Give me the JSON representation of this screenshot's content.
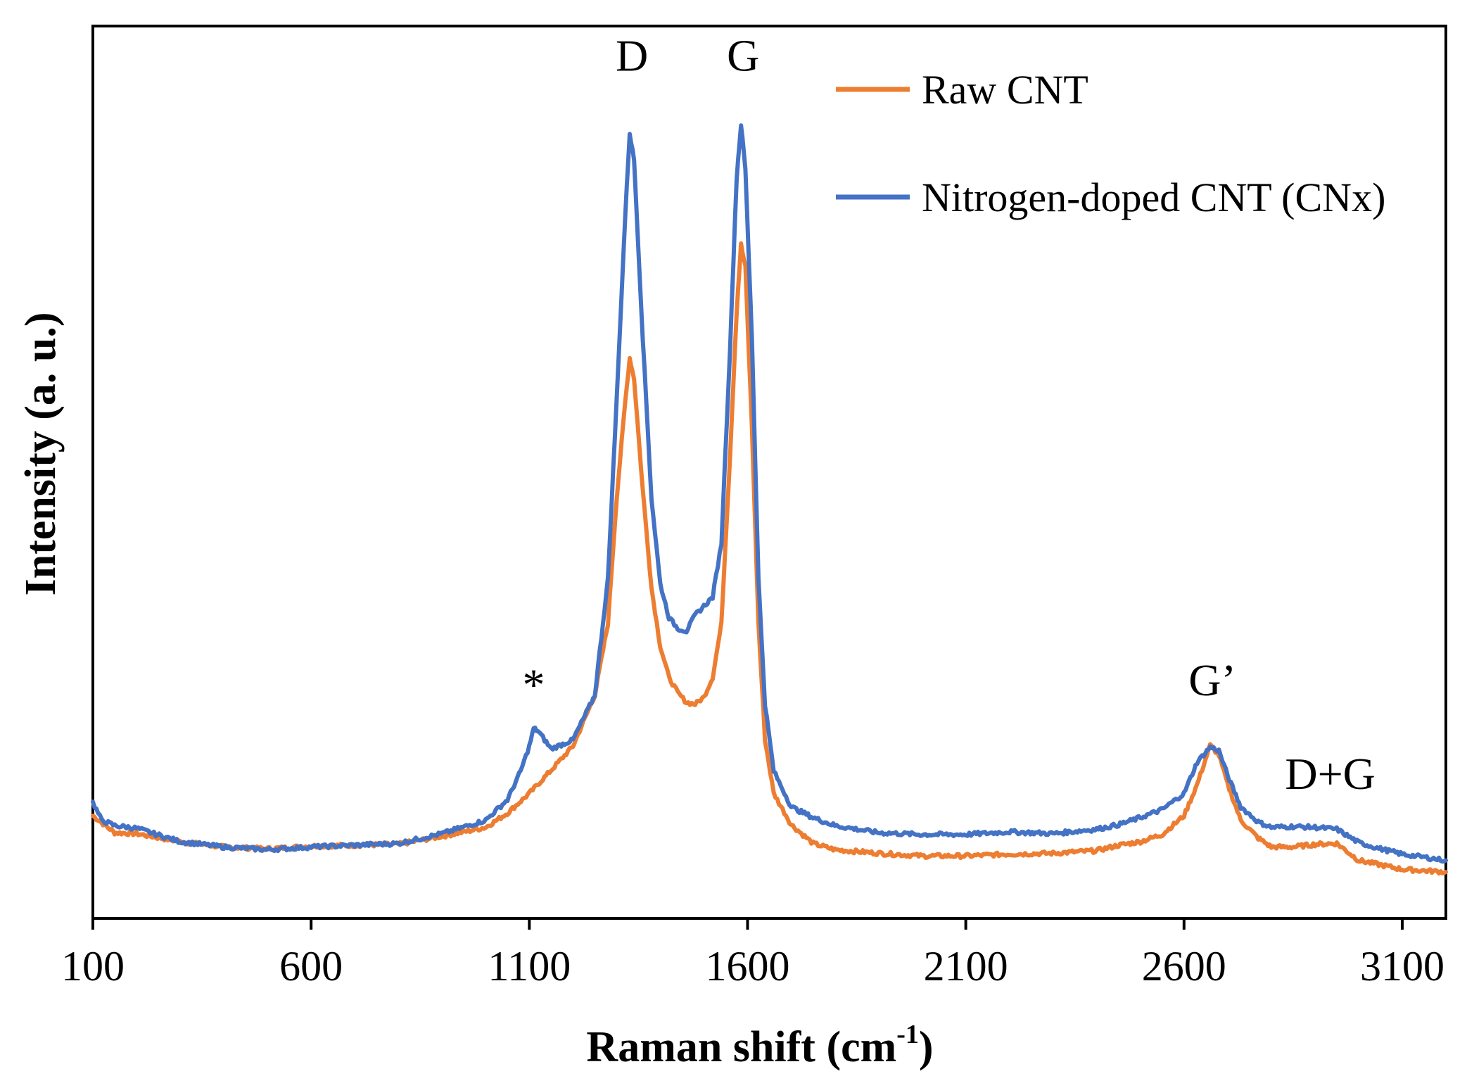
{
  "chart_data": {
    "type": "line",
    "title": "",
    "xlabel": "Raman shift (cm",
    "xlabel_sup": "-1",
    "xlabel_close": ")",
    "ylabel": "Intensity (a. u.)",
    "xlim": [
      100,
      3200
    ],
    "ylim": [
      0,
      100
    ],
    "x_ticks": [
      100,
      600,
      1100,
      1600,
      2100,
      2600,
      3100
    ],
    "x_tick_labels": [
      "100",
      "600",
      "1100",
      "1600",
      "2100",
      "2600",
      "3100"
    ],
    "y_ticks_shown": false,
    "grid": false,
    "legend_position": "top-right",
    "series": [
      {
        "name": "Raw CNT",
        "color": "#ED7D31",
        "points": [
          [
            100,
            11.5
          ],
          [
            150,
            9.6
          ],
          [
            200,
            9.5
          ],
          [
            300,
            8.6
          ],
          [
            400,
            8.0
          ],
          [
            500,
            7.8
          ],
          [
            600,
            8.1
          ],
          [
            700,
            8.2
          ],
          [
            800,
            8.3
          ],
          [
            900,
            9.2
          ],
          [
            1000,
            10.2
          ],
          [
            1050,
            11.8
          ],
          [
            1100,
            14.0
          ],
          [
            1150,
            16.6
          ],
          [
            1200,
            19.3
          ],
          [
            1250,
            25.0
          ],
          [
            1280,
            33.0
          ],
          [
            1300,
            47.0
          ],
          [
            1320,
            58.0
          ],
          [
            1330,
            62.8
          ],
          [
            1340,
            60.5
          ],
          [
            1360,
            48.0
          ],
          [
            1380,
            37.0
          ],
          [
            1400,
            30.5
          ],
          [
            1420,
            27.0
          ],
          [
            1440,
            25.3
          ],
          [
            1460,
            24.2
          ],
          [
            1480,
            24.0
          ],
          [
            1500,
            24.8
          ],
          [
            1520,
            27.0
          ],
          [
            1540,
            33.0
          ],
          [
            1560,
            52.0
          ],
          [
            1575,
            68.0
          ],
          [
            1585,
            75.5
          ],
          [
            1595,
            73.0
          ],
          [
            1610,
            55.0
          ],
          [
            1625,
            33.0
          ],
          [
            1640,
            20.0
          ],
          [
            1660,
            14.0
          ],
          [
            1700,
            10.5
          ],
          [
            1750,
            8.4
          ],
          [
            1800,
            7.7
          ],
          [
            1900,
            7.3
          ],
          [
            2000,
            7.0
          ],
          [
            2100,
            7.0
          ],
          [
            2200,
            7.2
          ],
          [
            2300,
            7.3
          ],
          [
            2400,
            7.6
          ],
          [
            2450,
            8.2
          ],
          [
            2500,
            8.6
          ],
          [
            2550,
            9.4
          ],
          [
            2600,
            11.5
          ],
          [
            2630,
            15.0
          ],
          [
            2660,
            19.4
          ],
          [
            2680,
            18.3
          ],
          [
            2700,
            15.0
          ],
          [
            2730,
            11.0
          ],
          [
            2770,
            9.0
          ],
          [
            2800,
            8.0
          ],
          [
            2850,
            8.0
          ],
          [
            2900,
            8.3
          ],
          [
            2950,
            8.4
          ],
          [
            3000,
            6.5
          ],
          [
            3050,
            6.0
          ],
          [
            3100,
            5.5
          ],
          [
            3200,
            5.2
          ]
        ]
      },
      {
        "name": "Nitrogen-doped CNT (CNx)",
        "color": "#4472C4",
        "points": [
          [
            100,
            13.0
          ],
          [
            120,
            11.0
          ],
          [
            150,
            10.4
          ],
          [
            200,
            10.1
          ],
          [
            300,
            8.6
          ],
          [
            400,
            8.0
          ],
          [
            500,
            7.7
          ],
          [
            600,
            8.0
          ],
          [
            700,
            8.2
          ],
          [
            800,
            8.4
          ],
          [
            900,
            9.5
          ],
          [
            1000,
            11.0
          ],
          [
            1050,
            13.3
          ],
          [
            1080,
            16.5
          ],
          [
            1100,
            19.3
          ],
          [
            1110,
            21.3
          ],
          [
            1120,
            21.0
          ],
          [
            1150,
            19.0
          ],
          [
            1200,
            20.0
          ],
          [
            1250,
            25.0
          ],
          [
            1280,
            38.0
          ],
          [
            1300,
            58.0
          ],
          [
            1320,
            79.0
          ],
          [
            1330,
            88.0
          ],
          [
            1340,
            85.0
          ],
          [
            1360,
            65.0
          ],
          [
            1380,
            47.0
          ],
          [
            1400,
            37.5
          ],
          [
            1420,
            33.7
          ],
          [
            1440,
            32.5
          ],
          [
            1460,
            32.2
          ],
          [
            1480,
            34.0
          ],
          [
            1500,
            35.0
          ],
          [
            1520,
            36.0
          ],
          [
            1540,
            42.0
          ],
          [
            1560,
            64.0
          ],
          [
            1575,
            83.0
          ],
          [
            1585,
            89.0
          ],
          [
            1595,
            84.0
          ],
          [
            1610,
            65.0
          ],
          [
            1625,
            38.0
          ],
          [
            1640,
            24.0
          ],
          [
            1660,
            16.5
          ],
          [
            1700,
            12.5
          ],
          [
            1750,
            11.3
          ],
          [
            1800,
            10.4
          ],
          [
            1900,
            9.6
          ],
          [
            2000,
            9.4
          ],
          [
            2100,
            9.4
          ],
          [
            2200,
            9.7
          ],
          [
            2300,
            9.5
          ],
          [
            2400,
            10.0
          ],
          [
            2450,
            10.5
          ],
          [
            2500,
            11.3
          ],
          [
            2550,
            12.2
          ],
          [
            2600,
            14.0
          ],
          [
            2630,
            17.5
          ],
          [
            2660,
            19.2
          ],
          [
            2680,
            18.8
          ],
          [
            2700,
            16.0
          ],
          [
            2730,
            12.5
          ],
          [
            2770,
            10.8
          ],
          [
            2800,
            10.2
          ],
          [
            2850,
            10.3
          ],
          [
            2900,
            10.2
          ],
          [
            2950,
            10.0
          ],
          [
            3000,
            8.5
          ],
          [
            3050,
            7.8
          ],
          [
            3100,
            7.2
          ],
          [
            3200,
            6.5
          ]
        ]
      }
    ],
    "annotations": [
      {
        "text": "D",
        "x": 1335,
        "y": 95
      },
      {
        "text": "G",
        "x": 1590,
        "y": 95
      },
      {
        "text": "*",
        "x": 1110,
        "y": 24.5
      },
      {
        "text": "G’",
        "x": 2665,
        "y": 25
      },
      {
        "text": "D+G",
        "x": 2935,
        "y": 14.5
      }
    ]
  }
}
